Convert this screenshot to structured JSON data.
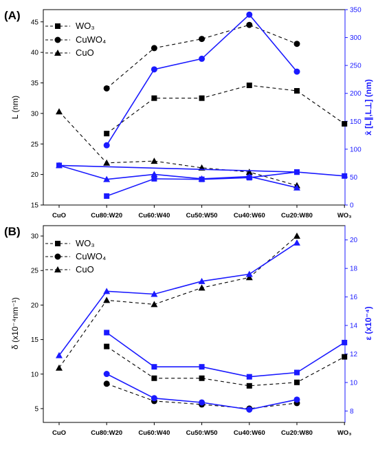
{
  "chart_data": [
    {
      "type": "line",
      "panel_label": "(A)",
      "categories": [
        "CuO",
        "Cu80:W20",
        "Cu60:W40",
        "Cu50:W50",
        "Cu40:W60",
        "Cu20:W80",
        "WO₃"
      ],
      "ylabel": "L (nm)",
      "ylim": [
        15,
        47
      ],
      "yticks": [
        15,
        20,
        25,
        30,
        35,
        40,
        45
      ],
      "ylabel_right": "x̄ [L∥,L⊥] (nm)",
      "ylim_right": [
        0,
        350
      ],
      "yticks_right": [
        0,
        50,
        100,
        150,
        200,
        250,
        300,
        350
      ],
      "legend": {
        "placement": "top-left",
        "entries": [
          "WO₃",
          "CuWO₄",
          "CuO"
        ]
      },
      "series": [
        {
          "name": "WO₃",
          "axis": "left",
          "style": "dashed-black",
          "marker": "square",
          "values": [
            null,
            26.7,
            32.5,
            32.5,
            34.6,
            33.7,
            28.3
          ]
        },
        {
          "name": "CuWO₄",
          "axis": "left",
          "style": "dashed-black",
          "marker": "circle",
          "values": [
            null,
            34.1,
            40.7,
            42.2,
            44.5,
            41.4,
            null
          ]
        },
        {
          "name": "CuO",
          "axis": "left",
          "style": "dashed-black",
          "marker": "triangle",
          "values": [
            30.3,
            21.9,
            22.2,
            21.1,
            20.4,
            18.2,
            null
          ]
        },
        {
          "axis": "right",
          "style": "solid-blue",
          "marker": "square",
          "values": [
            null,
            16,
            47,
            46,
            49,
            59,
            null
          ]
        },
        {
          "axis": "right",
          "style": "solid-blue",
          "marker": "circle",
          "values": [
            null,
            107,
            243,
            262,
            341,
            239,
            null
          ]
        },
        {
          "axis": "right",
          "style": "solid-blue",
          "marker": "triangle",
          "values": [
            71,
            46,
            55,
            47,
            51,
            31,
            null
          ]
        },
        {
          "axis": "right",
          "style": "solid-blue",
          "marker": "square",
          "values": [
            71,
            null,
            null,
            null,
            null,
            59,
            52
          ]
        }
      ]
    },
    {
      "type": "line",
      "panel_label": "(B)",
      "categories": [
        "CuO",
        "Cu80:W20",
        "Cu60:W40",
        "Cu50:W50",
        "Cu40:W60",
        "Cu20:W80",
        "WO₃"
      ],
      "ylabel": "δ (x10⁻⁴nm⁻¹)",
      "ylim": [
        3,
        31.5
      ],
      "yticks": [
        5,
        10,
        15,
        20,
        25,
        30
      ],
      "ylabel_right": "ε (x10⁻⁴)",
      "ylim_right": [
        7.2,
        21
      ],
      "yticks_right": [
        8,
        10,
        12,
        14,
        16,
        18,
        20
      ],
      "legend": {
        "placement": "top-left",
        "entries": [
          "WO₃",
          "CuWO₄",
          "CuO"
        ]
      },
      "series": [
        {
          "name": "WO₃",
          "axis": "left",
          "style": "dashed-black",
          "marker": "square",
          "values": [
            null,
            14.0,
            9.4,
            9.4,
            8.3,
            8.8,
            12.5
          ]
        },
        {
          "name": "CuWO₄",
          "axis": "left",
          "style": "dashed-black",
          "marker": "circle",
          "values": [
            null,
            8.6,
            6.1,
            5.6,
            5.0,
            5.8,
            null
          ]
        },
        {
          "name": "CuO",
          "axis": "left",
          "style": "dashed-black",
          "marker": "triangle",
          "values": [
            10.9,
            20.7,
            20.1,
            22.5,
            24.0,
            30.0,
            null
          ]
        },
        {
          "axis": "right",
          "style": "solid-blue",
          "marker": "square",
          "values": [
            null,
            13.5,
            11.1,
            11.1,
            10.4,
            10.7,
            12.8
          ]
        },
        {
          "axis": "right",
          "style": "solid-blue",
          "marker": "circle",
          "values": [
            null,
            10.6,
            8.9,
            8.6,
            8.1,
            8.8,
            null
          ]
        },
        {
          "axis": "right",
          "style": "solid-blue",
          "marker": "triangle",
          "values": [
            11.9,
            16.4,
            16.2,
            17.1,
            17.6,
            19.8,
            null
          ]
        }
      ]
    }
  ]
}
